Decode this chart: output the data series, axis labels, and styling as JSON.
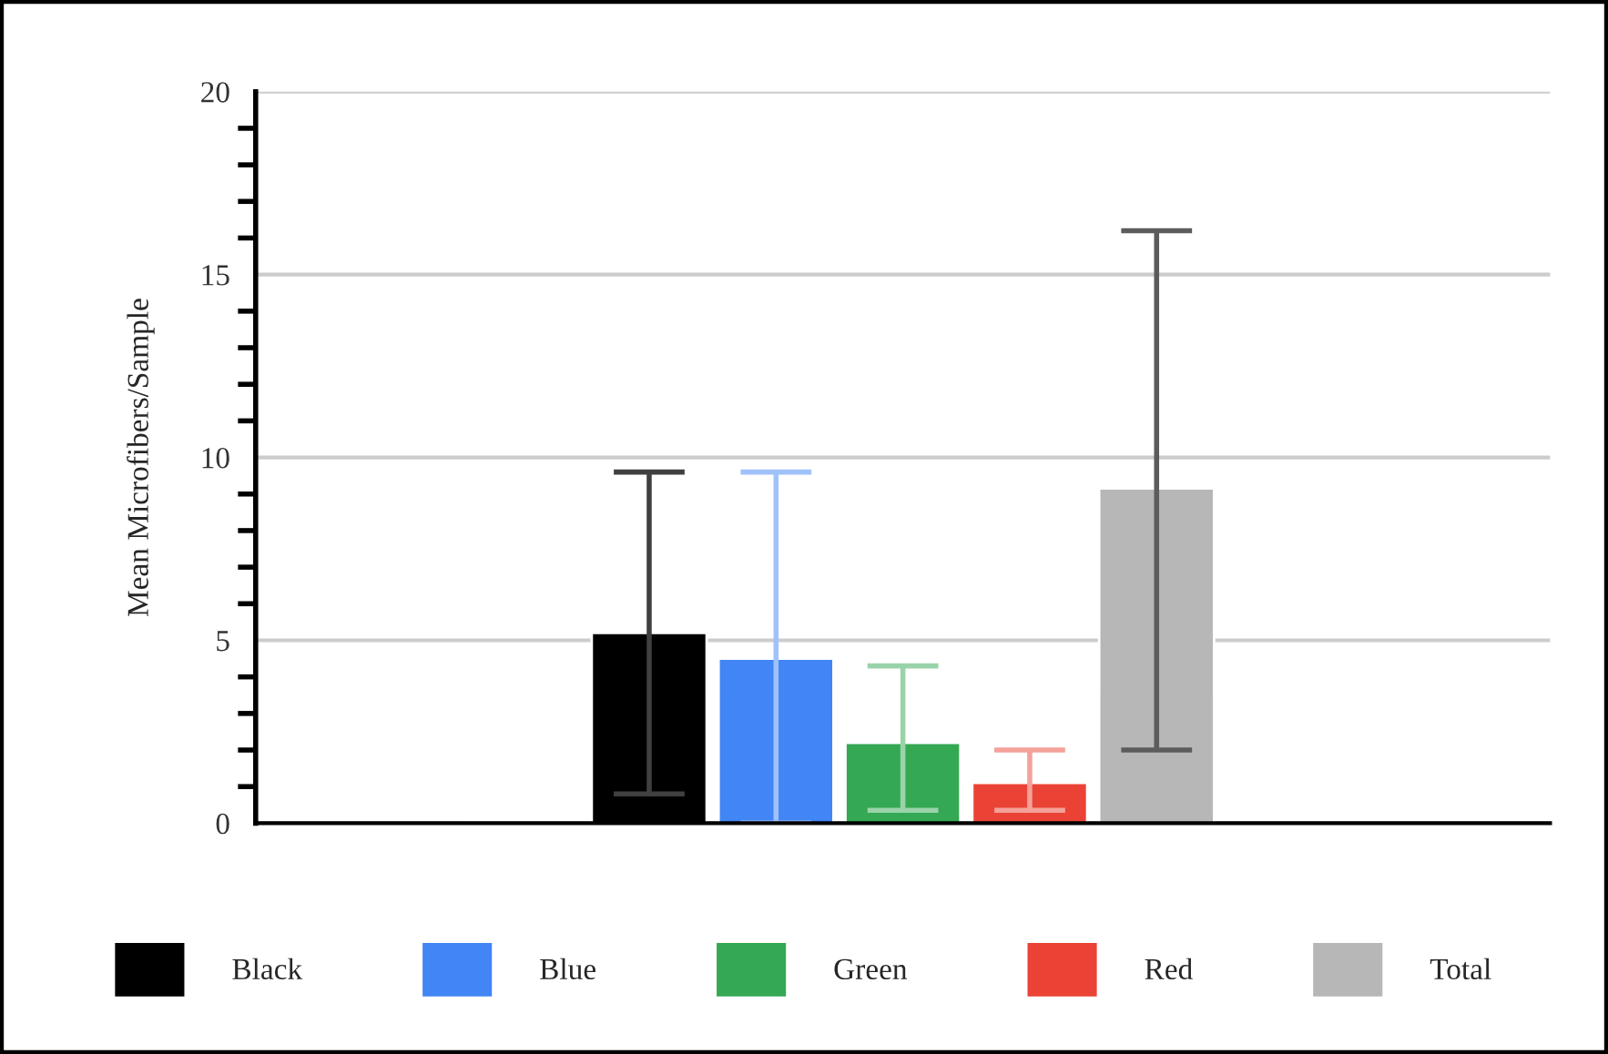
{
  "chart_data": {
    "type": "bar",
    "ylabel": "Mean Microfibers/Sample",
    "categories": [
      null
    ],
    "series": [
      {
        "name": "Black",
        "color": "#000000",
        "values": [
          5.2
        ],
        "errors": [
          [
            0.8,
            9.6
          ]
        ]
      },
      {
        "name": "Blue",
        "color": "#4285f4",
        "values": [
          4.5
        ],
        "errors": [
          [
            0,
            9.6
          ]
        ]
      },
      {
        "name": "Green",
        "color": "#34a853",
        "values": [
          2.2
        ],
        "errors": [
          [
            0.35,
            4.3
          ]
        ]
      },
      {
        "name": "Red",
        "color": "#ea4335",
        "values": [
          1.1
        ],
        "errors": [
          [
            0.35,
            2.0
          ]
        ]
      },
      {
        "name": "Total",
        "color": "#b7b7b7",
        "values": [
          9.15
        ],
        "errors": [
          [
            2.0,
            16.2
          ]
        ]
      }
    ],
    "ylim": [
      0,
      20
    ],
    "yticks": [
      0,
      {
        "value": 1,
        "label": null
      },
      {
        "value": 2,
        "label": null
      },
      {
        "value": 3,
        "label": null
      },
      {
        "value": 4,
        "label": null
      },
      5,
      {
        "value": 6,
        "label": null
      },
      {
        "value": 7,
        "label": null
      },
      {
        "value": 8,
        "label": null
      },
      {
        "value": 9,
        "label": null
      },
      10,
      {
        "value": 11,
        "label": null
      },
      {
        "value": 12,
        "label": null
      },
      {
        "value": 13,
        "label": null
      },
      {
        "value": 14,
        "label": null
      },
      15,
      {
        "value": 16,
        "label": null
      },
      {
        "value": 17,
        "label": null
      },
      {
        "value": 18,
        "label": null
      },
      {
        "value": 19,
        "label": null
      },
      20
    ],
    "grid": "y",
    "legend": "bottom"
  }
}
